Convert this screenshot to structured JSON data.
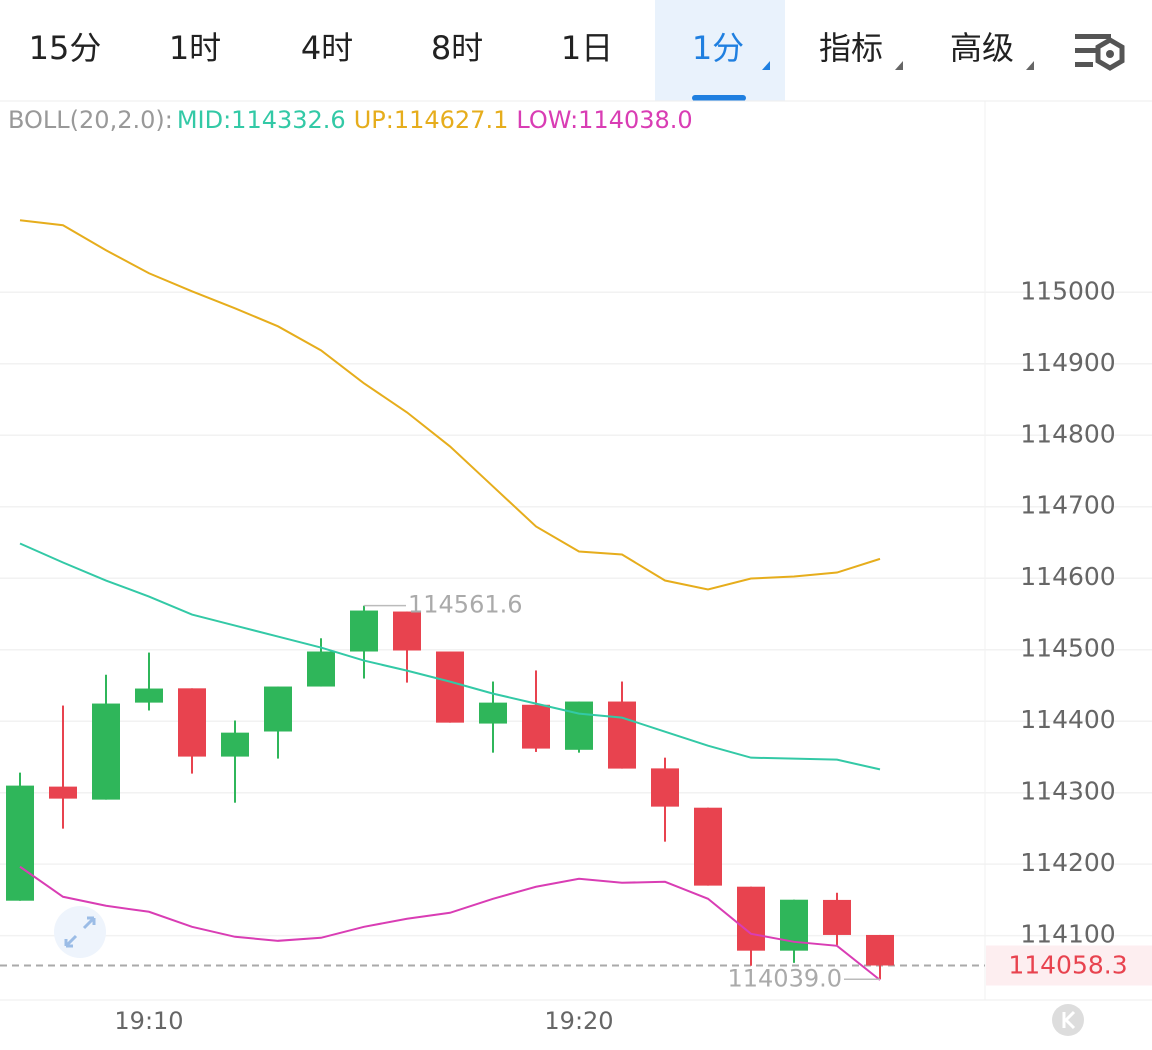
{
  "tabs": [
    "15分",
    "1时",
    "4时",
    "8时",
    "1日",
    "1分",
    "指标",
    "高级"
  ],
  "active_tab": 5,
  "chart_data": {
    "type": "candlestick",
    "indicator": {
      "label": "BOLL(20,2.0):",
      "items": [
        {
          "text": "MID:114332.6",
          "color": "#33c9a6"
        },
        {
          "text": "UP:114627.1",
          "color": "#e6ad1c"
        },
        {
          "text": "LOW:114038.0",
          "color": "#d93db4"
        }
      ]
    },
    "categories": [
      null,
      null,
      null,
      "19:10",
      null,
      null,
      null,
      null,
      null,
      null,
      null,
      null,
      null,
      "19:20",
      null,
      null,
      null,
      null,
      null,
      null,
      null
    ],
    "open": [
      114148.9,
      114308.5,
      114290.3,
      114426,
      114446,
      114350.5,
      114385.6,
      114448.5,
      114497.5,
      114553.4,
      114497.5,
      114396.7,
      114423,
      114360,
      114427.5,
      114334,
      114279,
      114168.5,
      114079,
      114150,
      114101
    ],
    "high": [
      114328,
      114421.9,
      114465,
      114496,
      114446,
      114401,
      114448.5,
      114516,
      114561.6,
      114553.4,
      114497.5,
      114455.5,
      114471,
      114427.5,
      114455.5,
      114349,
      114279,
      114168.5,
      114150.3,
      114160,
      114101
    ],
    "low": [
      114148.9,
      114249.7,
      114290.3,
      114415,
      114326.7,
      114286,
      114347.7,
      114448.5,
      114459.7,
      114454,
      114398,
      114356,
      114357,
      114356,
      114333.7,
      114231.5,
      114170,
      114057.9,
      114062,
      114087,
      114039
    ],
    "close": [
      114309.9,
      114291.7,
      114424.7,
      114445.7,
      114350.5,
      114384,
      114448.5,
      114497.5,
      114554.8,
      114498.9,
      114398,
      114426,
      114361.7,
      114427.5,
      114333.7,
      114280.5,
      114170,
      114079,
      114150.3,
      114101,
      114058.3
    ],
    "up_color": "#2fb65a",
    "down_color": "#e8434f",
    "lines": [
      {
        "color": "#33c9a6",
        "values": [
          114648.6,
          114622,
          114596.8,
          114574.4,
          114549.2,
          114533.8,
          114518.4,
          114503,
          114484.8,
          114470.8,
          114455.4,
          114438.6,
          114424.6,
          114410.6,
          114405,
          114385.4,
          114365.8,
          114349,
          114347.6,
          114346.2,
          114332.6
        ]
      },
      {
        "color": "#e6ad1c",
        "values": [
          115100.8,
          115093.8,
          115058.8,
          115026.6,
          115001.4,
          114977.6,
          114952.4,
          114918.8,
          114872.6,
          114832,
          114784.4,
          114728.4,
          114672.4,
          114637.4,
          114633.2,
          114596.8,
          114584.2,
          114599.6,
          114602.4,
          114608,
          114627.1
        ]
      },
      {
        "color": "#d93db4",
        "values": [
          114196.4,
          114154.4,
          114141.8,
          114133.4,
          114112.4,
          114098.4,
          114092.8,
          114097,
          114112.4,
          114123.6,
          114132,
          114151.6,
          114168.4,
          114179.6,
          114174,
          114175.4,
          114151.6,
          114102.6,
          114091.4,
          114085.8,
          114038
        ]
      }
    ],
    "annotations": [
      {
        "value": 114561.6,
        "label": "114561.6",
        "index": 8
      },
      {
        "value": 114039.0,
        "label": "114039.0",
        "index": 20
      }
    ],
    "current_price": {
      "value": 114058.3,
      "label": "114058.3"
    },
    "ylim": [
      114010,
      115262
    ],
    "yticks": [
      114100,
      114200,
      114300,
      114400,
      114500,
      114600,
      114700,
      114800,
      114900,
      115000
    ],
    "grid": true
  }
}
